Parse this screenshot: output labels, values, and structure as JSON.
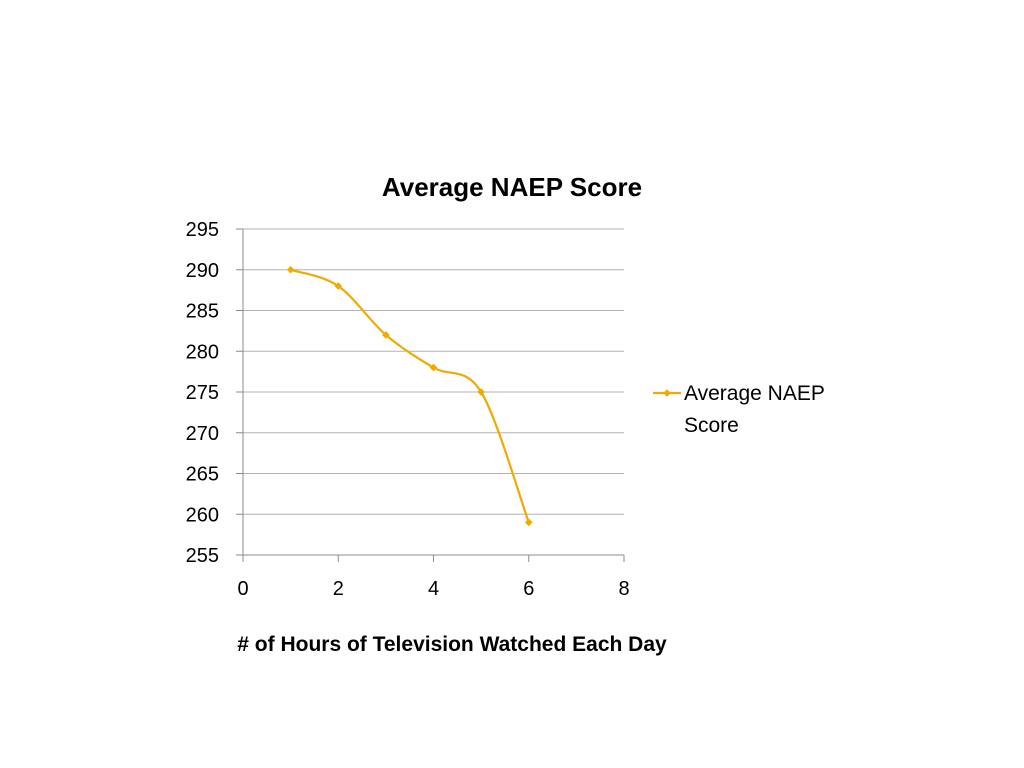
{
  "chart_data": {
    "type": "scatter",
    "title": "Average NAEP Score",
    "xlabel": "# of Hours of Television Watched Each Day",
    "ylabel": "",
    "x_ticks": [
      "0",
      "2",
      "4",
      "6",
      "8"
    ],
    "y_ticks": [
      "255",
      "260",
      "265",
      "270",
      "275",
      "280",
      "285",
      "290",
      "295"
    ],
    "xlim": [
      0,
      8
    ],
    "ylim": [
      255,
      295
    ],
    "grid": "horizontal",
    "legend_position": "right",
    "series": [
      {
        "name": "Average NAEP Score",
        "legend_lines": [
          "Average NAEP",
          "Score"
        ],
        "color": "#F0AA00",
        "marker": "diamond",
        "smooth": true,
        "x": [
          1,
          2,
          3,
          4,
          5,
          6
        ],
        "y": [
          290,
          288,
          282,
          278,
          275,
          259
        ]
      }
    ]
  }
}
